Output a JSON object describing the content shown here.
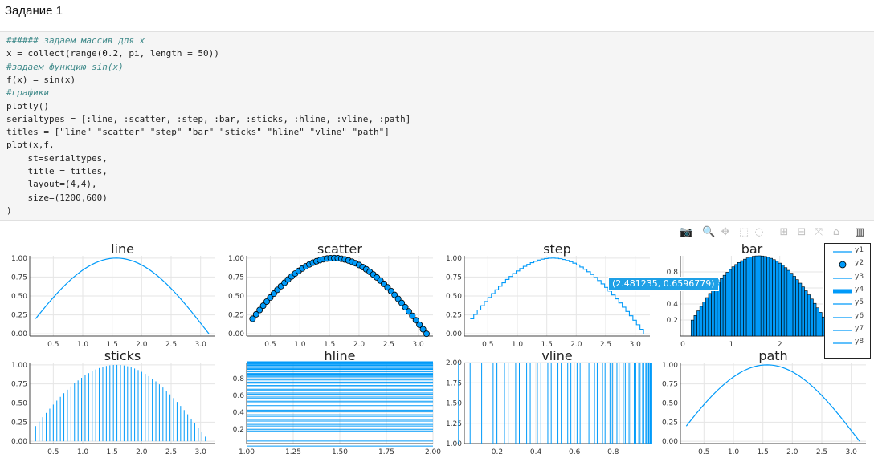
{
  "header": {
    "title": "Задание 1"
  },
  "code_lines": [
    {
      "text": "###### задаем массив для x",
      "comment": true
    },
    {
      "text": "x = collect(range(0.2, pi, length = 50))",
      "comment": false
    },
    {
      "text": "#задаем функцию sin(x)",
      "comment": true
    },
    {
      "text": "f(x) = sin(x)",
      "comment": false
    },
    {
      "text": "#графики",
      "comment": true
    },
    {
      "text": "plotly()",
      "comment": false
    },
    {
      "text": "serialtypes = [:line, :scatter, :step, :bar, :sticks, :hline, :vline, :path]",
      "comment": false
    },
    {
      "text": "titles = [\"line\" \"scatter\" \"step\" \"bar\" \"sticks\" \"hline\" \"vline\" \"path\"]",
      "comment": false
    },
    {
      "text": "plot(x,f,",
      "comment": false
    },
    {
      "text": "    st=serialtypes,",
      "comment": false
    },
    {
      "text": "    title = titles,",
      "comment": false
    },
    {
      "text": "    layout=(4,4),",
      "comment": false
    },
    {
      "text": "    size=(1200,600)",
      "comment": false
    },
    {
      "text": ")",
      "comment": false
    }
  ],
  "toolbar": [
    {
      "name": "camera-icon",
      "glyph": "📷"
    },
    {
      "name": "zoom-icon",
      "glyph": "🔍"
    },
    {
      "name": "pan-icon",
      "glyph": "✥"
    },
    {
      "name": "box-select-icon",
      "glyph": "⬚"
    },
    {
      "name": "lasso-select-icon",
      "glyph": "◌"
    },
    {
      "name": "zoom-in-icon",
      "glyph": "⊞"
    },
    {
      "name": "zoom-out-icon",
      "glyph": "⊟"
    },
    {
      "name": "autoscale-icon",
      "glyph": "⤧"
    },
    {
      "name": "reset-axes-icon",
      "glyph": "⌂"
    },
    {
      "name": "plotly-logo-icon",
      "glyph": "▥"
    }
  ],
  "legend": [
    "y1",
    "y2",
    "y3",
    "y4",
    "y5",
    "y6",
    "y7",
    "y8"
  ],
  "tooltip": {
    "text": "(2.481235, 0.6596779)",
    "series": "y3"
  },
  "colors": {
    "series": "#009af9",
    "marker_edge": "#000000",
    "grid": "#e5e5e5"
  },
  "chart_data": [
    {
      "type": "line",
      "title": "line",
      "function": "sin(x)",
      "x_range": [
        0.2,
        3.14159
      ],
      "n_points": 50,
      "xlim": [
        0.1,
        3.25
      ],
      "ylim": [
        -0.03,
        1.03
      ],
      "xticks": [
        0.5,
        1.0,
        1.5,
        2.0,
        2.5,
        3.0
      ],
      "xtick_labels": [
        "0.5",
        "1.0",
        "1.5",
        "2.0",
        "2.5",
        "3.0"
      ],
      "yticks": [
        0,
        0.25,
        0.5,
        0.75,
        1.0
      ],
      "ytick_labels": [
        "0.00",
        "0.25",
        "0.50",
        "0.75",
        "1.00"
      ]
    },
    {
      "type": "scatter",
      "title": "scatter",
      "function": "sin(x)",
      "x_range": [
        0.2,
        3.14159
      ],
      "n_points": 50,
      "xlim": [
        0.1,
        3.25
      ],
      "ylim": [
        -0.03,
        1.03
      ],
      "xticks": [
        0.5,
        1.0,
        1.5,
        2.0,
        2.5,
        3.0
      ],
      "xtick_labels": [
        "0.5",
        "1.0",
        "1.5",
        "2.0",
        "2.5",
        "3.0"
      ],
      "yticks": [
        0,
        0.25,
        0.5,
        0.75,
        1.0
      ],
      "ytick_labels": [
        "0.00",
        "0.25",
        "0.50",
        "0.75",
        "1.00"
      ]
    },
    {
      "type": "step",
      "title": "step",
      "function": "sin(x)",
      "x_range": [
        0.2,
        3.14159
      ],
      "n_points": 50,
      "xlim": [
        0.1,
        3.25
      ],
      "ylim": [
        -0.03,
        1.03
      ],
      "xticks": [
        0.5,
        1.0,
        1.5,
        2.0,
        2.5,
        3.0
      ],
      "xtick_labels": [
        "0.5",
        "1.0",
        "1.5",
        "2.0",
        "2.5",
        "3.0"
      ],
      "yticks": [
        0,
        0.25,
        0.5,
        0.75,
        1.0
      ],
      "ytick_labels": [
        "0.00",
        "0.25",
        "0.50",
        "0.75",
        "1.00"
      ]
    },
    {
      "type": "bar",
      "title": "bar",
      "function": "sin(x)",
      "x_range": [
        0.2,
        3.14159
      ],
      "n_points": 50,
      "xlim": [
        -0.05,
        2.9
      ],
      "ylim": [
        0,
        1.0
      ],
      "xticks": [
        0,
        1,
        2
      ],
      "xtick_labels": [
        "0",
        "1",
        "2"
      ],
      "yticks": [
        0.2,
        0.4,
        0.6,
        0.8
      ],
      "ytick_labels": [
        "0.2",
        "0.4",
        "0.6",
        "0.8"
      ]
    },
    {
      "type": "sticks",
      "title": "sticks",
      "function": "sin(x)",
      "x_range": [
        0.2,
        3.14159
      ],
      "n_points": 50,
      "xlim": [
        0.1,
        3.25
      ],
      "ylim": [
        -0.03,
        1.03
      ],
      "xticks": [
        0.5,
        1.0,
        1.5,
        2.0,
        2.5,
        3.0
      ],
      "xtick_labels": [
        "0.5",
        "1.0",
        "1.5",
        "2.0",
        "2.5",
        "3.0"
      ],
      "yticks": [
        0,
        0.25,
        0.5,
        0.75,
        1.0
      ],
      "ytick_labels": [
        "0.00",
        "0.25",
        "0.50",
        "0.75",
        "1.00"
      ]
    },
    {
      "type": "hline",
      "title": "hline",
      "function": "sin(x)",
      "x_range": [
        0.2,
        3.14159
      ],
      "n_points": 50,
      "xlim": [
        1.0,
        2.0
      ],
      "ylim": [
        0.03,
        0.99
      ],
      "xticks": [
        1.0,
        1.25,
        1.5,
        1.75,
        2.0
      ],
      "xtick_labels": [
        "1.00",
        "1.25",
        "1.50",
        "1.75",
        "2.00"
      ],
      "yticks": [
        0.2,
        0.4,
        0.6,
        0.8
      ],
      "ytick_labels": [
        "0.2",
        "0.4",
        "0.6",
        "0.8"
      ]
    },
    {
      "type": "vline",
      "title": "vline",
      "function": "sin(x)",
      "x_range": [
        0.2,
        3.14159
      ],
      "n_points": 50,
      "xlim": [
        0.03,
        0.99
      ],
      "ylim": [
        1.0,
        2.0
      ],
      "xticks": [
        0.2,
        0.4,
        0.6,
        0.8
      ],
      "xtick_labels": [
        "0.2",
        "0.4",
        "0.6",
        "0.8"
      ],
      "yticks": [
        1.0,
        1.25,
        1.5,
        1.75,
        2.0
      ],
      "ytick_labels": [
        "1.00",
        "1.25",
        "1.50",
        "1.75",
        "2.00"
      ]
    },
    {
      "type": "path",
      "title": "path",
      "function": "sin(x)",
      "x_range": [
        0.2,
        3.14159
      ],
      "n_points": 50,
      "xlim": [
        0.1,
        3.25
      ],
      "ylim": [
        -0.03,
        1.03
      ],
      "xticks": [
        0.5,
        1.0,
        1.5,
        2.0,
        2.5,
        3.0
      ],
      "xtick_labels": [
        "0.5",
        "1.0",
        "1.5",
        "2.0",
        "2.5",
        "3.0"
      ],
      "yticks": [
        0,
        0.25,
        0.5,
        0.75,
        1.0
      ],
      "ytick_labels": [
        "0.00",
        "0.25",
        "0.50",
        "0.75",
        "1.00"
      ]
    }
  ]
}
